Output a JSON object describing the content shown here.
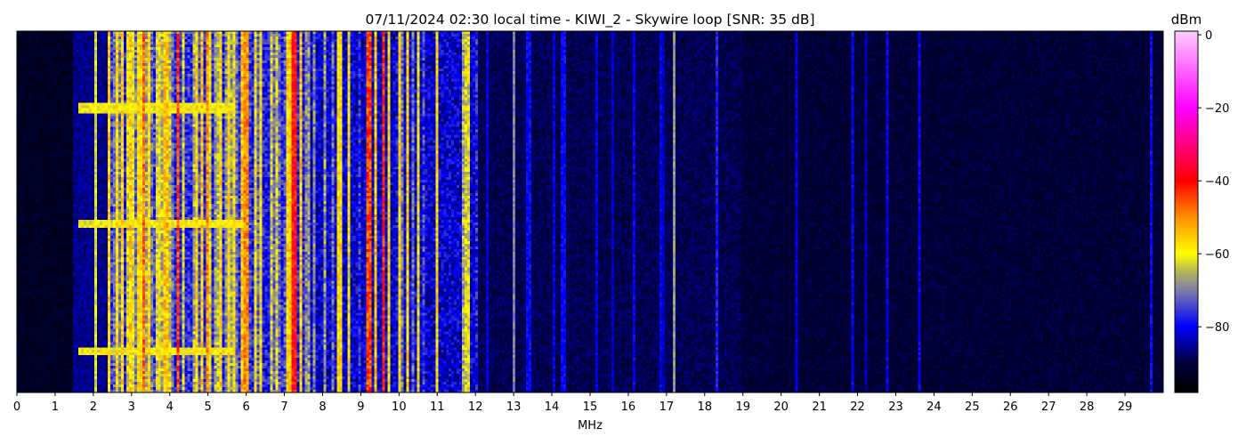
{
  "chart_data": {
    "type": "heatmap",
    "title": "07/11/2024 02:30 local time - KIWI_2 - Skywire loop [SNR: 35 dB]",
    "xlabel": "MHz",
    "ylabel": "",
    "xlim": [
      0,
      30
    ],
    "x_ticks": [
      "0",
      "1",
      "2",
      "3",
      "4",
      "5",
      "6",
      "7",
      "8",
      "9",
      "10",
      "11",
      "12",
      "13",
      "14",
      "15",
      "16",
      "17",
      "18",
      "19",
      "20",
      "21",
      "22",
      "23",
      "24",
      "25",
      "26",
      "27",
      "28",
      "29"
    ],
    "colorbar": {
      "label": "dBm",
      "range": [
        -98,
        1
      ],
      "ticks": [
        "0",
        "−20",
        "−40",
        "−60",
        "−80"
      ],
      "tick_values": [
        0,
        -20,
        -40,
        -60,
        -80
      ],
      "colormap": [
        {
          "v": -98,
          "c": "#000000"
        },
        {
          "v": -90,
          "c": "#00003c"
        },
        {
          "v": -80,
          "c": "#0000ff"
        },
        {
          "v": -70,
          "c": "#7f7fa8"
        },
        {
          "v": -65,
          "c": "#b4b45a"
        },
        {
          "v": -60,
          "c": "#ffff00"
        },
        {
          "v": -50,
          "c": "#ff9000"
        },
        {
          "v": -40,
          "c": "#ff0000"
        },
        {
          "v": -20,
          "c": "#ff00ff"
        },
        {
          "v": 1,
          "c": "#ffccff"
        }
      ]
    },
    "noise_floor_dbm": [
      {
        "from": 0,
        "to": 1.5,
        "level": -93
      },
      {
        "from": 1.5,
        "to": 2.4,
        "level": -86
      },
      {
        "from": 2.4,
        "to": 7.6,
        "level": -78
      },
      {
        "from": 7.6,
        "to": 12.1,
        "level": -82
      },
      {
        "from": 12.1,
        "to": 19,
        "level": -89
      },
      {
        "from": 19,
        "to": 30,
        "level": -91
      }
    ],
    "broadband_region_mhz": [
      2.4,
      7.6
    ],
    "signals": [
      {
        "f": 2.05,
        "level": -62
      },
      {
        "f": 2.6,
        "level": -58
      },
      {
        "f": 2.75,
        "level": -57
      },
      {
        "f": 3.3,
        "level": -48
      },
      {
        "f": 3.45,
        "level": -58
      },
      {
        "f": 3.9,
        "level": -55
      },
      {
        "f": 4.2,
        "level": -45
      },
      {
        "f": 4.85,
        "level": -56
      },
      {
        "f": 5.0,
        "level": -50
      },
      {
        "f": 5.9,
        "level": -55
      },
      {
        "f": 6.0,
        "level": -50
      },
      {
        "f": 7.25,
        "level": -40
      },
      {
        "f": 7.3,
        "level": -42
      },
      {
        "f": 7.45,
        "level": -55
      },
      {
        "f": 8.45,
        "level": -58
      },
      {
        "f": 8.7,
        "level": -60
      },
      {
        "f": 9.2,
        "level": -45
      },
      {
        "f": 9.4,
        "level": -55
      },
      {
        "f": 9.6,
        "level": -42
      },
      {
        "f": 9.75,
        "level": -58
      },
      {
        "f": 10.0,
        "level": -58
      },
      {
        "f": 10.2,
        "level": -57
      },
      {
        "f": 10.5,
        "level": -60
      },
      {
        "f": 11.0,
        "level": -58
      },
      {
        "f": 11.8,
        "level": -62
      },
      {
        "f": 13.0,
        "level": -70
      },
      {
        "f": 13.4,
        "level": -80
      },
      {
        "f": 14.3,
        "level": -80
      },
      {
        "f": 17.2,
        "level": -68
      },
      {
        "f": 18.3,
        "level": -78
      }
    ],
    "bursts": [
      {
        "time_fraction": 0.21,
        "from": 1.6,
        "to": 5.7,
        "level": -60
      },
      {
        "time_fraction": 0.53,
        "from": 1.6,
        "to": 5.9,
        "level": -60
      },
      {
        "time_fraction": 0.88,
        "from": 1.6,
        "to": 5.7,
        "level": -60
      }
    ]
  }
}
